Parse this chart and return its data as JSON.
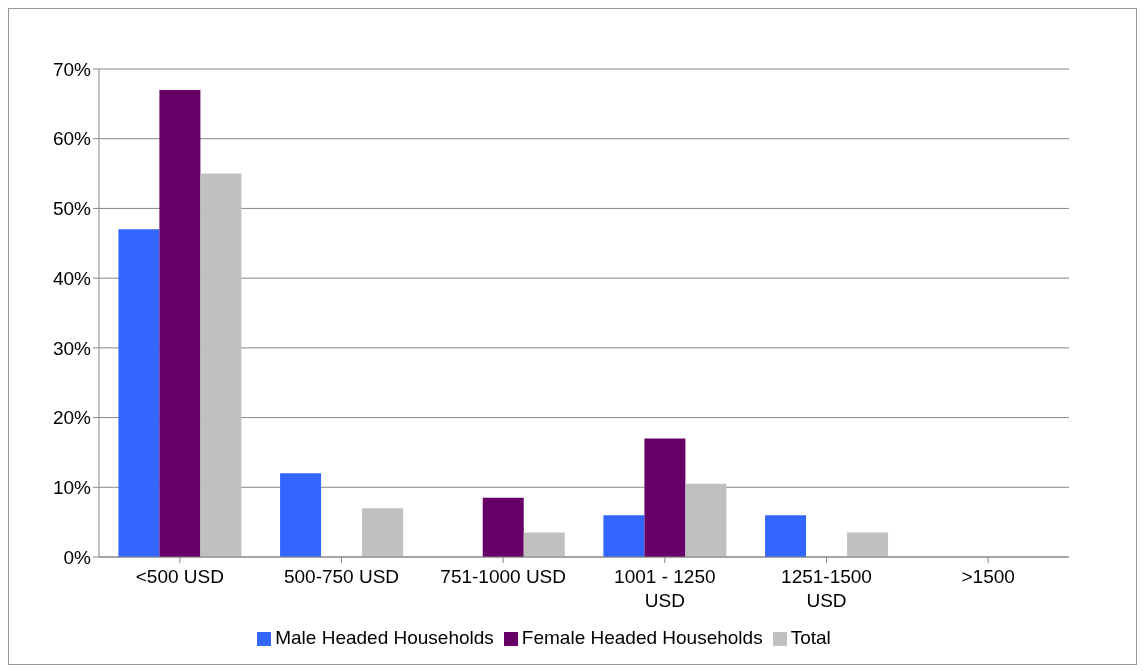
{
  "chart_data": {
    "type": "bar",
    "categories": [
      "<500 USD",
      "500-750 USD",
      "751-1000 USD",
      "1001 - 1250 USD",
      "1251-1500 USD",
      ">1500"
    ],
    "series": [
      {
        "name": "Male Headed Households",
        "color": "#3366ff",
        "values": [
          47,
          12,
          0,
          6,
          6,
          0
        ]
      },
      {
        "name": "Female Headed Households",
        "color": "#660066",
        "values": [
          67,
          0,
          8.5,
          17,
          0,
          0
        ]
      },
      {
        "name": "Total",
        "color": "#c0c0c0",
        "values": [
          55,
          7,
          3.5,
          10.5,
          3.5,
          0
        ]
      }
    ],
    "ylim": [
      0,
      70
    ],
    "yticks": [
      {
        "value": 0,
        "label": "0%"
      },
      {
        "value": 10,
        "label": "10%"
      },
      {
        "value": 20,
        "label": "20%"
      },
      {
        "value": 30,
        "label": "30%"
      },
      {
        "value": 40,
        "label": "40%"
      },
      {
        "value": 50,
        "label": "50%"
      },
      {
        "value": 60,
        "label": "60%"
      },
      {
        "value": 70,
        "label": "70%"
      }
    ],
    "grid": "y",
    "legend": "bottom"
  }
}
